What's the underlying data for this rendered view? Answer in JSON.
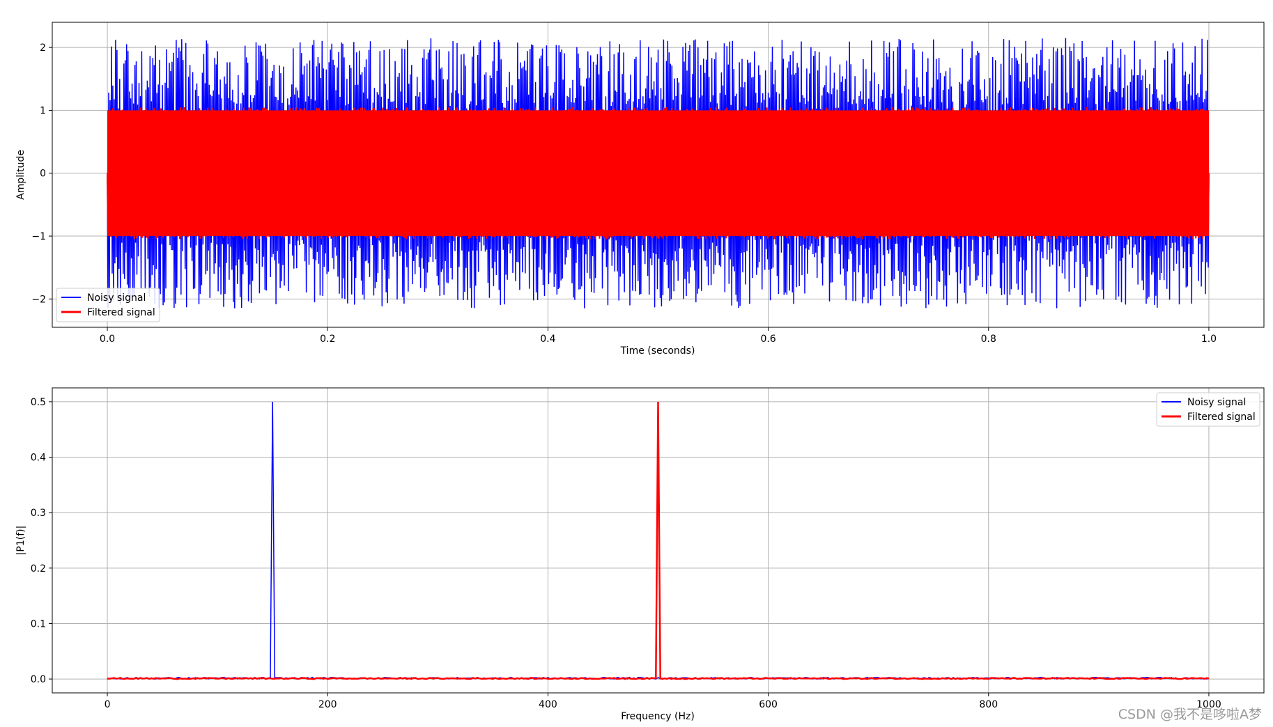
{
  "watermark": "CSDN @我不是哆啦A梦",
  "chart_data": [
    {
      "type": "line",
      "xlabel": "Time (seconds)",
      "ylabel": "Amplitude",
      "xlim": [
        -0.05,
        1.05
      ],
      "ylim": [
        -2.45,
        2.4
      ],
      "xticks": [
        0.0,
        0.2,
        0.4,
        0.6,
        0.8,
        1.0
      ],
      "xtick_labels": [
        "0.0",
        "0.2",
        "0.4",
        "0.6",
        "0.8",
        "1.0"
      ],
      "yticks": [
        2,
        1,
        0,
        -1,
        -2
      ],
      "ytick_labels": [
        "2",
        "1",
        "0",
        "−1",
        "−2"
      ],
      "grid": true,
      "legend_position": "lower-left",
      "series": [
        {
          "name": "Noisy signal",
          "color": "#0000ff",
          "description_range": [
            -2.25,
            2.2
          ],
          "x_range": [
            0.0,
            1.0
          ]
        },
        {
          "name": "Filtered signal",
          "color": "#ff0000",
          "description_range": [
            -1.05,
            1.05
          ],
          "x_range": [
            0.0,
            1.0
          ]
        }
      ]
    },
    {
      "type": "line",
      "xlabel": "Frequency (Hz)",
      "ylabel": "|P1(f)|",
      "xlim": [
        -50,
        1050
      ],
      "ylim": [
        -0.025,
        0.525
      ],
      "xticks": [
        0,
        200,
        400,
        600,
        800,
        1000
      ],
      "xtick_labels": [
        "0",
        "200",
        "400",
        "600",
        "800",
        "1000"
      ],
      "yticks": [
        0.5,
        0.4,
        0.3,
        0.2,
        0.1,
        0.0
      ],
      "ytick_labels": [
        "0.5",
        "0.4",
        "0.3",
        "0.2",
        "0.1",
        "0.0"
      ],
      "grid": true,
      "legend_position": "upper-right",
      "series": [
        {
          "name": "Noisy signal",
          "color": "#0000ff",
          "peaks": [
            {
              "x": 150,
              "y": 0.5
            }
          ],
          "noise_floor": 0.003,
          "x_range": [
            0,
            1000
          ]
        },
        {
          "name": "Filtered signal",
          "color": "#ff0000",
          "peaks": [
            {
              "x": 500,
              "y": 0.5
            }
          ],
          "noise_floor": 0.002,
          "x_range": [
            0,
            1000
          ]
        }
      ]
    }
  ]
}
